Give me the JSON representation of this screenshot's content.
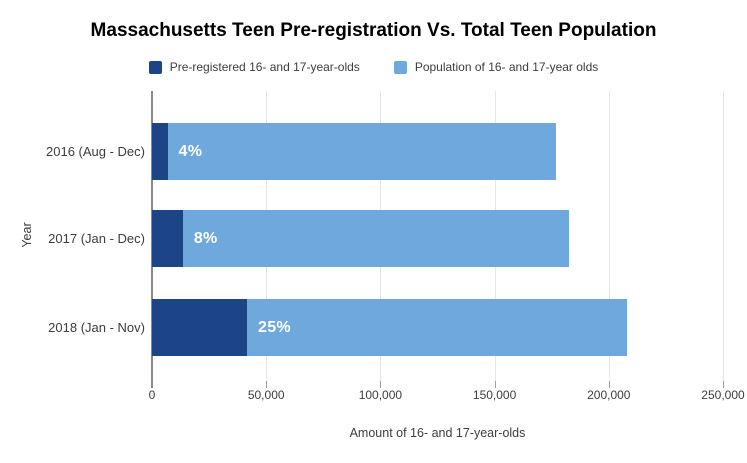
{
  "chart_data": {
    "type": "bar",
    "orientation": "horizontal",
    "stacked": true,
    "title": "Massachusetts Teen Pre-registration Vs. Total Teen Population",
    "categories": [
      "2016 (Aug - Dec)",
      "2017 (Jan - Dec)",
      "2018 (Jan - Nov)"
    ],
    "series": [
      {
        "name": "Pre-registered 16- and 17-year-olds",
        "color": "#1c4587",
        "values": [
          6800,
          13500,
          41600
        ]
      },
      {
        "name": "Population of 16- and 17-year olds",
        "color": "#6fa8dc",
        "values": [
          170000,
          169000,
          166400
        ],
        "bar_labels": [
          "4%",
          "8%",
          "25%"
        ]
      }
    ],
    "xlabel": "Amount of 16- and 17-year-olds",
    "ylabel": "Year",
    "xlim": [
      0,
      250000
    ],
    "xticks": [
      0,
      50000,
      100000,
      150000,
      200000,
      250000
    ],
    "xtick_labels": [
      "0",
      "50,000",
      "100,000",
      "150,000",
      "200,000",
      "250,000"
    ],
    "grid": true,
    "legend_position": "top",
    "bar_label_color": "#ffffff"
  },
  "colors": {
    "background": "#ffffff",
    "grid": "#e6e6e6",
    "axis_line": "#8a8a8a",
    "tick": "#9e9e9e",
    "title_text": "#000000",
    "axis_text": "#3d3d3d"
  }
}
